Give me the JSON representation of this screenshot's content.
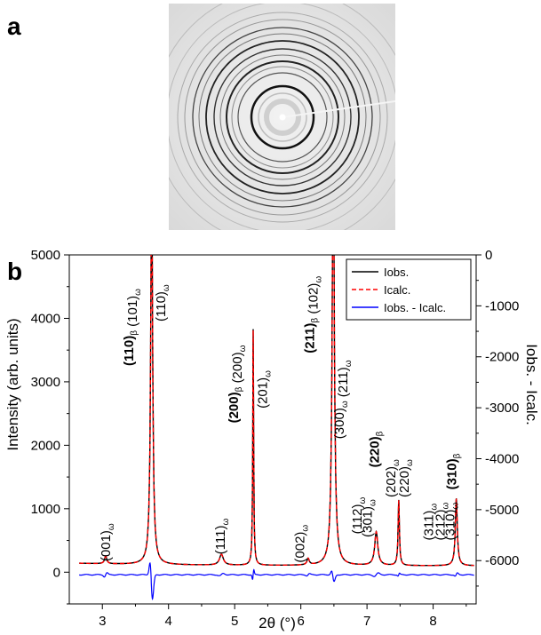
{
  "panel_labels": {
    "a": "a",
    "b": "b"
  },
  "colors": {
    "obs": "#000000",
    "calc": "#ff0000",
    "diff": "#0000ff",
    "frame": "#000000"
  },
  "chart_data": {
    "type": "line",
    "xlabel": "2θ (°)",
    "ylabel": "Intensity (arb. units)",
    "y2label": "Iobs. - Icalc.",
    "xlim": [
      2.5,
      8.65
    ],
    "ylim": [
      -500,
      5000
    ],
    "y2lim": [
      -6850,
      0
    ],
    "x_ticks": [
      {
        "v": 3,
        "t": "3"
      },
      {
        "v": 4,
        "t": "4"
      },
      {
        "v": 5,
        "t": "5"
      },
      {
        "v": 6,
        "t": "6"
      },
      {
        "v": 7,
        "t": "7"
      },
      {
        "v": 8,
        "t": "8"
      }
    ],
    "y_ticks": [
      {
        "v": 0,
        "t": "0"
      },
      {
        "v": 1000,
        "t": "1000"
      },
      {
        "v": 2000,
        "t": "2000"
      },
      {
        "v": 3000,
        "t": "3000"
      },
      {
        "v": 4000,
        "t": "4000"
      },
      {
        "v": 5000,
        "t": "5000"
      }
    ],
    "y2_ticks": [
      {
        "v": 0,
        "t": "0"
      },
      {
        "v": -1000,
        "t": "-1000"
      },
      {
        "v": -2000,
        "t": "-2000"
      },
      {
        "v": -3000,
        "t": "-3000"
      },
      {
        "v": -4000,
        "t": "-4000"
      },
      {
        "v": -5000,
        "t": "-5000"
      },
      {
        "v": -6000,
        "t": "-6000"
      }
    ],
    "legend_position": "top-right",
    "baseline": 100,
    "peaks": [
      {
        "x": 3.05,
        "h": 120,
        "w": 0.02
      },
      {
        "x": 3.745,
        "h": 6000,
        "w": 0.018
      },
      {
        "x": 4.8,
        "h": 170,
        "w": 0.035
      },
      {
        "x": 5.28,
        "h": 3720,
        "w": 0.008
      },
      {
        "x": 6.11,
        "h": 100,
        "w": 0.02
      },
      {
        "x": 6.49,
        "h": 6500,
        "w": 0.02
      },
      {
        "x": 7.14,
        "h": 530,
        "w": 0.028
      },
      {
        "x": 7.48,
        "h": 1030,
        "w": 0.012
      },
      {
        "x": 8.35,
        "h": 1060,
        "w": 0.018
      }
    ],
    "series": [
      {
        "name": "Iobs.",
        "style": "solid"
      },
      {
        "name": "Icalc.",
        "style": "dashed"
      },
      {
        "name": "Iobs. - Icalc.",
        "style": "solid",
        "axis": "right",
        "offset": -40
      }
    ],
    "diff_features": [
      {
        "x": 3.05,
        "a": 50,
        "w": 0.02
      },
      {
        "x": 3.745,
        "a": -420,
        "w": 0.02
      },
      {
        "x": 4.8,
        "a": 30,
        "w": 0.03
      },
      {
        "x": 5.28,
        "a": 120,
        "w": 0.01
      },
      {
        "x": 6.11,
        "a": 25,
        "w": 0.02
      },
      {
        "x": 6.49,
        "a": -120,
        "w": 0.02
      },
      {
        "x": 7.14,
        "a": 40,
        "w": 0.03
      },
      {
        "x": 7.48,
        "a": 35,
        "w": 0.012
      },
      {
        "x": 8.35,
        "a": 40,
        "w": 0.018
      }
    ],
    "annotations": [
      {
        "x": 3.12,
        "y": 170,
        "parts": [
          {
            "t": "(001)"
          },
          {
            "t": "ω",
            "sub": 1
          }
        ]
      },
      {
        "x": 3.47,
        "y": 3250,
        "parts": [
          {
            "t": "(110)",
            "b": 1
          },
          {
            "t": "β",
            "sub": 1
          },
          {
            "t": " (101)"
          },
          {
            "t": "ω",
            "sub": 1
          }
        ]
      },
      {
        "x": 3.95,
        "y": 3950,
        "parts": [
          {
            "t": "(110)"
          },
          {
            "t": "ω",
            "sub": 1
          }
        ]
      },
      {
        "x": 4.85,
        "y": 280,
        "parts": [
          {
            "t": "(111)"
          },
          {
            "t": "ω",
            "sub": 1
          }
        ]
      },
      {
        "x": 5.05,
        "y": 2350,
        "parts": [
          {
            "t": "(200)",
            "b": 1
          },
          {
            "t": "β",
            "sub": 1
          },
          {
            "t": " (200)"
          },
          {
            "t": "ω",
            "sub": 1
          }
        ]
      },
      {
        "x": 5.49,
        "y": 2580,
        "parts": [
          {
            "t": "(201)"
          },
          {
            "t": "ω",
            "sub": 1
          }
        ]
      },
      {
        "x": 6.05,
        "y": 150,
        "parts": [
          {
            "t": "(002)"
          },
          {
            "t": "ω",
            "sub": 1
          }
        ]
      },
      {
        "x": 6.2,
        "y": 3450,
        "parts": [
          {
            "t": "(211)",
            "b": 1
          },
          {
            "t": "β",
            "sub": 1
          },
          {
            "t": " (102)"
          },
          {
            "t": "ω",
            "sub": 1
          }
        ]
      },
      {
        "x": 6.65,
        "y": 2100,
        "parts": [
          {
            "t": "(300)"
          },
          {
            "t": "ω",
            "sub": 1
          },
          {
            "t": " (211)"
          },
          {
            "t": "ω",
            "sub": 1
          }
        ]
      },
      {
        "x": 6.92,
        "y": 600,
        "parts": [
          {
            "t": "(112)"
          },
          {
            "t": "ω",
            "sub": 1
          }
        ]
      },
      {
        "x": 7.07,
        "y": 550,
        "parts": [
          {
            "t": "(301)"
          },
          {
            "t": "ω",
            "sub": 1
          }
        ]
      },
      {
        "x": 7.18,
        "y": 1650,
        "parts": [
          {
            "t": "(220)",
            "b": 1
          },
          {
            "t": "β",
            "sub": 1
          }
        ]
      },
      {
        "x": 7.43,
        "y": 1180,
        "parts": [
          {
            "t": "(202)"
          },
          {
            "t": "ω",
            "sub": 1
          }
        ]
      },
      {
        "x": 7.63,
        "y": 1180,
        "parts": [
          {
            "t": "(220)"
          },
          {
            "t": "ω",
            "sub": 1
          }
        ]
      },
      {
        "x": 8.0,
        "y": 500,
        "parts": [
          {
            "t": "(311)"
          },
          {
            "t": "ω",
            "sub": 1
          }
        ]
      },
      {
        "x": 8.17,
        "y": 500,
        "parts": [
          {
            "t": "(212)"
          },
          {
            "t": "ω",
            "sub": 1
          }
        ]
      },
      {
        "x": 8.32,
        "y": 500,
        "parts": [
          {
            "t": "(310)"
          },
          {
            "t": "ω",
            "sub": 1
          }
        ]
      },
      {
        "x": 8.35,
        "y": 1300,
        "parts": [
          {
            "t": "(310)",
            "b": 1
          },
          {
            "t": "β",
            "sub": 1
          }
        ]
      }
    ]
  }
}
